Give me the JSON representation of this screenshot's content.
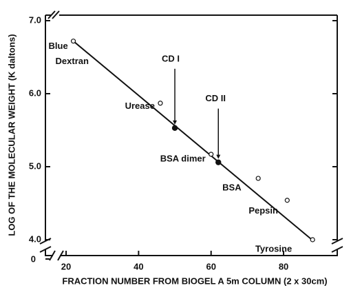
{
  "chart_data": {
    "type": "scatter",
    "xlabel": "FRACTION NUMBER FROM BIOGEL A 5m COLUMN (2 x 30cm)",
    "ylabel": "LOG OF THE MOLECULAR WEIGHT (K daltons)",
    "xlim": [
      14.3,
      94.8
    ],
    "ylim": [
      3.9,
      7.1
    ],
    "xticks": [
      20,
      40,
      60,
      80
    ],
    "yticks": [
      {
        "value": 4,
        "label": "4.0"
      },
      {
        "value": 5,
        "label": "5.0"
      },
      {
        "value": 6,
        "label": "6.0"
      },
      {
        "value": 7,
        "label": "7.0"
      }
    ],
    "y_break_label": "0",
    "points": {
      "x": [
        22,
        46,
        50,
        60,
        62,
        73,
        81,
        88
      ],
      "y": [
        6.72,
        5.87,
        5.53,
        5.17,
        5.06,
        4.84,
        4.54,
        4.0
      ],
      "filled": [
        false,
        false,
        true,
        false,
        true,
        false,
        false,
        false
      ],
      "labels": [
        [
          "Blue",
          "Dextran"
        ],
        [
          "Urease"
        ],
        [
          "CD I"
        ],
        [
          "BSA dimer"
        ],
        [
          "CD II"
        ],
        [
          "BSA"
        ],
        [
          "Pepsin"
        ],
        [
          "Tyrosine"
        ]
      ]
    },
    "fit_line": {
      "x": [
        22,
        88.3
      ],
      "y": [
        6.72,
        3.98
      ]
    },
    "color": "#111111"
  }
}
